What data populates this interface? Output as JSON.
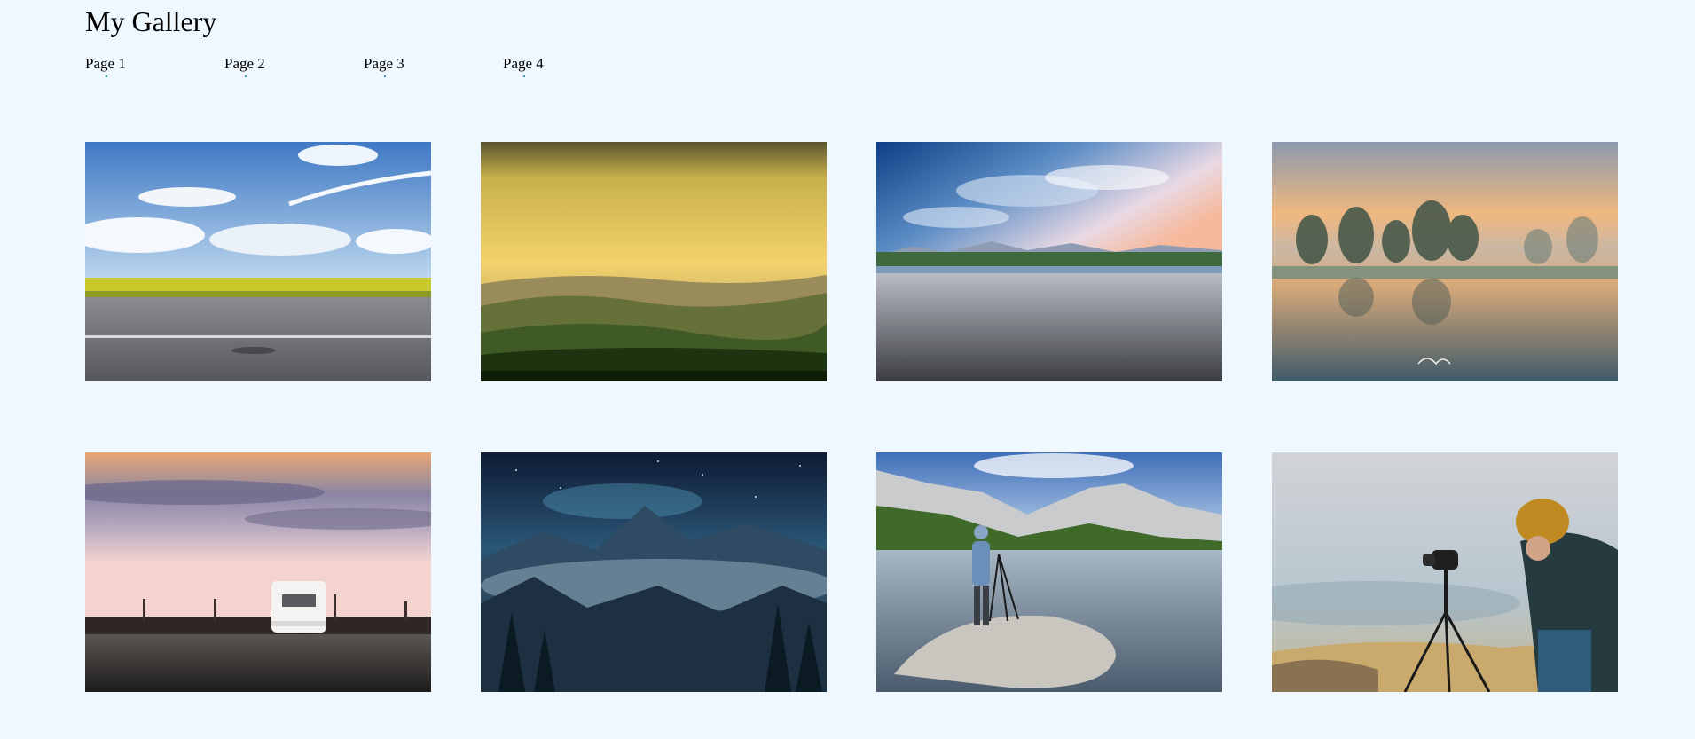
{
  "gallery": {
    "title": "My Gallery",
    "nav": [
      "Page 1",
      "Page 2",
      "Page 3",
      "Page 4"
    ],
    "photos": [
      {
        "name": "road-sunflower-field-photo"
      },
      {
        "name": "golden-hills-sunrise-photo"
      },
      {
        "name": "asphalt-mountains-sky-photo"
      },
      {
        "name": "misty-lake-trees-photo"
      },
      {
        "name": "caravan-sunset-fence-photo"
      },
      {
        "name": "starry-misty-mountains-photo"
      },
      {
        "name": "photographer-mountain-lake-photo"
      },
      {
        "name": "photographer-camera-tripod-photo"
      }
    ]
  }
}
